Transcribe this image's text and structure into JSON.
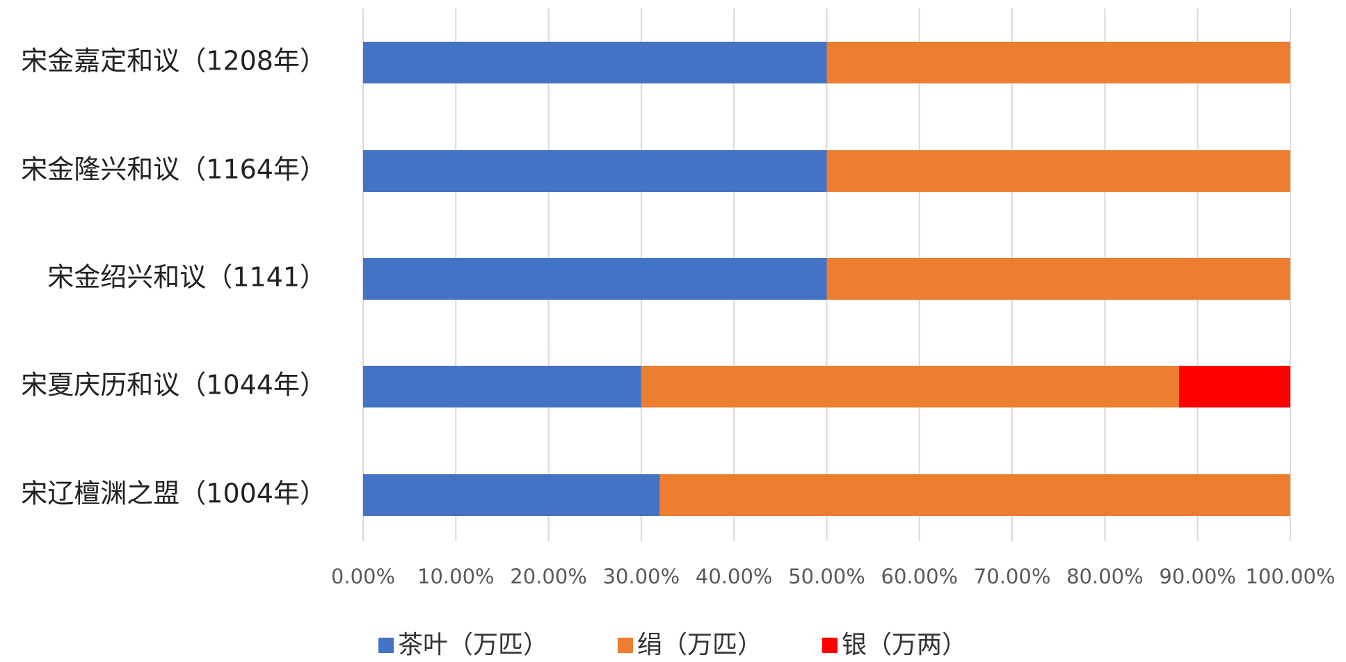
{
  "chart_data": {
    "type": "stacked-bar-horizontal",
    "categories": [
      "宋金嘉定和议（1208年）",
      "宋金隆兴和议（1164年）",
      "宋金绍兴和议（1141）",
      "宋夏庆历和议（1044年）",
      "宋辽檀渊之盟（1004年）"
    ],
    "series": [
      {
        "name": "茶叶（万匹）",
        "color": "#4472c4",
        "values": [
          50,
          50,
          50,
          30,
          32
        ]
      },
      {
        "name": "绢（万匹）",
        "color": "#ed7d31",
        "values": [
          50,
          50,
          50,
          58,
          68
        ]
      },
      {
        "name": "银（万两）",
        "color": "#ff0000",
        "values": [
          0,
          0,
          0,
          12,
          0
        ]
      }
    ],
    "xlim": [
      0,
      100
    ],
    "xticks": [
      {
        "value": 0,
        "label": "0.00%"
      },
      {
        "value": 10,
        "label": "10.00%"
      },
      {
        "value": 20,
        "label": "20.00%"
      },
      {
        "value": 30,
        "label": "30.00%"
      },
      {
        "value": 40,
        "label": "40.00%"
      },
      {
        "value": 50,
        "label": "50.00%"
      },
      {
        "value": 60,
        "label": "60.00%"
      },
      {
        "value": 70,
        "label": "70.00%"
      },
      {
        "value": 80,
        "label": "80.00%"
      },
      {
        "value": 90,
        "label": "90.00%"
      },
      {
        "value": 100,
        "label": "100.00%"
      }
    ],
    "grid": true,
    "legend": "bottom"
  }
}
